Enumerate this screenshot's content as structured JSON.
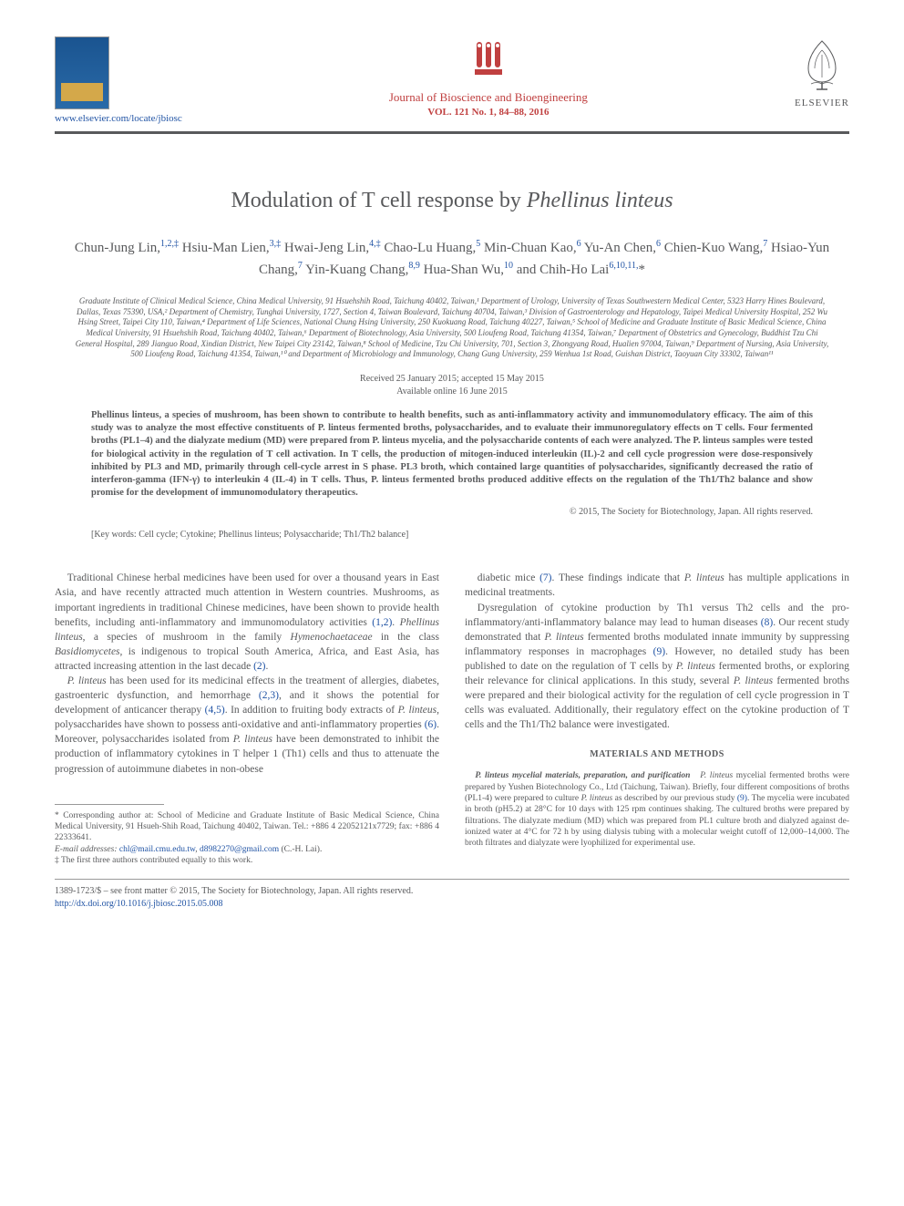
{
  "header": {
    "locate_url": "www.elsevier.com/locate/jbiosc",
    "journal_title": "Journal of Bioscience and Bioengineering",
    "vol_line": "VOL. 121 No. 1, 84–88, 2016",
    "publisher": "ELSEVIER",
    "colors": {
      "journal_text": "#c04040",
      "link": "#2053a4",
      "body_text": "#58595b",
      "rule": "#58595b"
    }
  },
  "article": {
    "title_pre": "Modulation of T cell response by ",
    "title_species": "Phellinus linteus",
    "authors_html": "Chun-Jung Lin,<sup>1,2,‡</sup> Hsiu-Man Lien,<sup>3,‡</sup> Hwai-Jeng Lin,<sup>4,‡</sup> Chao-Lu Huang,<sup>5</sup> Min-Chuan Kao,<sup>6</sup> Yu-An Chen,<sup>6</sup> Chien-Kuo Wang,<sup>7</sup> Hsiao-Yun Chang,<sup>7</sup> Yin-Kuang Chang,<sup>8,9</sup> Hua-Shan Wu,<sup>10</sup> and Chih-Ho Lai<sup>6,10,11,</sup>*",
    "affiliations": "Graduate Institute of Clinical Medical Science, China Medical University, 91 Hsuehshih Road, Taichung 40402, Taiwan,¹ Department of Urology, University of Texas Southwestern Medical Center, 5323 Harry Hines Boulevard, Dallas, Texas 75390, USA,² Department of Chemistry, Tunghai University, 1727, Section 4, Taiwan Boulevard, Taichung 40704, Taiwan,³ Division of Gastroenterology and Hepatology, Taipei Medical University Hospital, 252 Wu Hsing Street, Taipei City 110, Taiwan,⁴ Department of Life Sciences, National Chung Hsing University, 250 Kuokuang Road, Taichung 40227, Taiwan,⁵ School of Medicine and Graduate Institute of Basic Medical Science, China Medical University, 91 Hsuehshih Road, Taichung 40402, Taiwan,⁶ Department of Biotechnology, Asia University, 500 Lioufeng Road, Taichung 41354, Taiwan,⁷ Department of Obstetrics and Gynecology, Buddhist Tzu Chi General Hospital, 289 Jianguo Road, Xindian District, New Taipei City 23142, Taiwan,⁸ School of Medicine, Tzu Chi University, 701, Section 3, Zhongyang Road, Hualien 97004, Taiwan,⁹ Department of Nursing, Asia University, 500 Lioufeng Road, Taichung 41354, Taiwan,¹⁰ and Department of Microbiology and Immunology, Chang Gung University, 259 Wenhua 1st Road, Guishan District, Taoyuan City 33302, Taiwan¹¹",
    "dates_line1": "Received 25 January 2015; accepted 15 May 2015",
    "dates_line2": "Available online 16 June 2015",
    "abstract": "Phellinus linteus, a species of mushroom, has been shown to contribute to health benefits, such as anti-inflammatory activity and immunomodulatory efficacy. The aim of this study was to analyze the most effective constituents of P. linteus fermented broths, polysaccharides, and to evaluate their immunoregulatory effects on T cells. Four fermented broths (PL1–4) and the dialyzate medium (MD) were prepared from P. linteus mycelia, and the polysaccharide contents of each were analyzed. The P. linteus samples were tested for biological activity in the regulation of T cell activation. In T cells, the production of mitogen-induced interleukin (IL)-2 and cell cycle progression were dose-responsively inhibited by PL3 and MD, primarily through cell-cycle arrest in S phase. PL3 broth, which contained large quantities of polysaccharides, significantly decreased the ratio of interferon-gamma (IFN-γ) to interleukin 4 (IL-4) in T cells. Thus, P. linteus fermented broths produced additive effects on the regulation of the Th1/Th2 balance and show promise for the development of immunomodulatory therapeutics.",
    "copyright": "© 2015, The Society for Biotechnology, Japan. All rights reserved.",
    "keywords_label": "[Key words:",
    "keywords": "Cell cycle; Cytokine; Phellinus linteus; Polysaccharide; Th1/Th2 balance]"
  },
  "body": {
    "col1_p1": "Traditional Chinese herbal medicines have been used for over a thousand years in East Asia, and have recently attracted much attention in Western countries. Mushrooms, as important ingredients in traditional Chinese medicines, have been shown to provide health benefits, including anti-inflammatory and immunomodulatory activities (1,2). Phellinus linteus, a species of mushroom in the family Hymenochaetaceae in the class Basidiomycetes, is indigenous to tropical South America, Africa, and East Asia, has attracted increasing attention in the last decade (2).",
    "col1_p2": "P. linteus has been used for its medicinal effects in the treatment of allergies, diabetes, gastroenteric dysfunction, and hemorrhage (2,3), and it shows the potential for development of anticancer therapy (4,5). In addition to fruiting body extracts of P. linteus, polysaccharides have shown to possess anti-oxidative and anti-inflammatory properties (6). Moreover, polysaccharides isolated from P. linteus have been demonstrated to inhibit the production of inflammatory cytokines in T helper 1 (Th1) cells and thus to attenuate the progression of autoimmune diabetes in non-obese",
    "col2_p1": "diabetic mice (7). These findings indicate that P. linteus has multiple applications in medicinal treatments.",
    "col2_p2": "Dysregulation of cytokine production by Th1 versus Th2 cells and the pro-inflammatory/anti-inflammatory balance may lead to human diseases (8). Our recent study demonstrated that P. linteus fermented broths modulated innate immunity by suppressing inflammatory responses in macrophages (9). However, no detailed study has been published to date on the regulation of T cells by P. linteus fermented broths, or exploring their relevance for clinical applications. In this study, several P. linteus fermented broths were prepared and their biological activity for the regulation of cell cycle progression in T cells was evaluated. Additionally, their regulatory effect on the cytokine production of T cells and the Th1/Th2 balance were investigated.",
    "methods_heading": "MATERIALS AND METHODS",
    "methods_runin": "P. linteus mycelial materials, preparation, and purification",
    "methods_body": "P. linteus mycelial fermented broths were prepared by Yushen Biotechnology Co., Ltd (Taichung, Taiwan). Briefly, four different compositions of broths (PL1-4) were prepared to culture P. linteus as described by our previous study (9). The mycelia were incubated in broth (pH5.2) at 28°C for 10 days with 125 rpm continues shaking. The cultured broths were prepared by filtrations. The dialyzate medium (MD) which was prepared from PL1 culture broth and dialyzed against de-ionized water at 4°C for 72 h by using dialysis tubing with a molecular weight cutoff of 12,000–14,000. The broth filtrates and dialyzate were lyophilized for experimental use."
  },
  "footnotes": {
    "corr": "* Corresponding author at: School of Medicine and Graduate Institute of Basic Medical Science, China Medical University, 91 Hsueh-Shih Road, Taichung 40402, Taiwan. Tel.: +886 4 22052121x7729; fax: +886 4 22333641.",
    "email_label": "E-mail addresses:",
    "email1": "chl@mail.cmu.edu.tw",
    "email2": "d8982270@gmail.com",
    "email_tail": "(C.-H. Lai).",
    "equal": "‡ The first three authors contributed equally to this work."
  },
  "footer": {
    "issn_line": "1389-1723/$ – see front matter © 2015, The Society for Biotechnology, Japan. All rights reserved.",
    "doi": "http://dx.doi.org/10.1016/j.jbiosc.2015.05.008"
  }
}
